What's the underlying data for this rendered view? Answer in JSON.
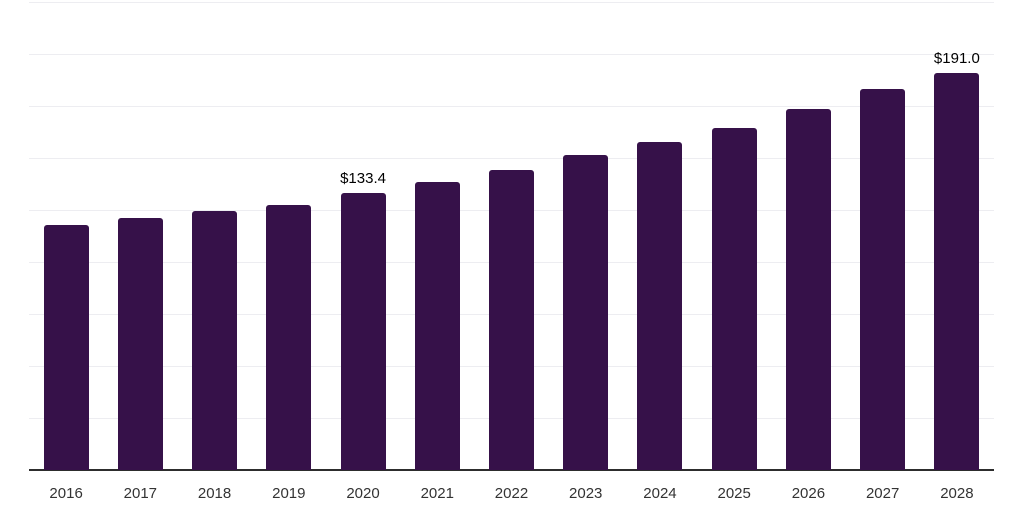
{
  "chart_data": {
    "type": "bar",
    "title": "",
    "categories": [
      "2016",
      "2017",
      "2018",
      "2019",
      "2020",
      "2021",
      "2022",
      "2023",
      "2024",
      "2025",
      "2026",
      "2027",
      "2028"
    ],
    "values": [
      118.0,
      121.2,
      124.3,
      127.4,
      133.4,
      138.5,
      144.0,
      151.4,
      157.5,
      164.4,
      173.6,
      183.2,
      191.0
    ],
    "data_labels": [
      {
        "index": 4,
        "text": "$133.4"
      },
      {
        "index": 12,
        "text": "$191.0"
      }
    ],
    "xlabel": "",
    "ylabel": "",
    "ylim": [
      0,
      225
    ],
    "grid_step": 25,
    "grid": true,
    "legend": false,
    "colors": {
      "bar": "#361149",
      "gridline": "#ededf1",
      "axis_line": "#2d2d2d",
      "tick_label": "#333333",
      "value_label": "#000000",
      "background": "#ffffff"
    }
  }
}
